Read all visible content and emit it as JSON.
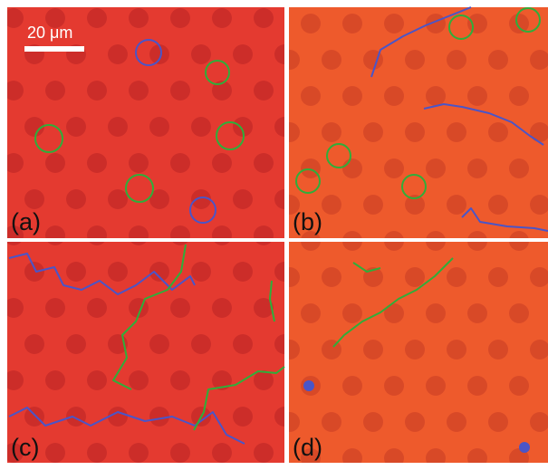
{
  "scale_bar": "20 μm",
  "panels": [
    {
      "label": "(a)"
    },
    {
      "label": "(b)"
    },
    {
      "label": "(c)"
    },
    {
      "label": "(d)"
    }
  ]
}
